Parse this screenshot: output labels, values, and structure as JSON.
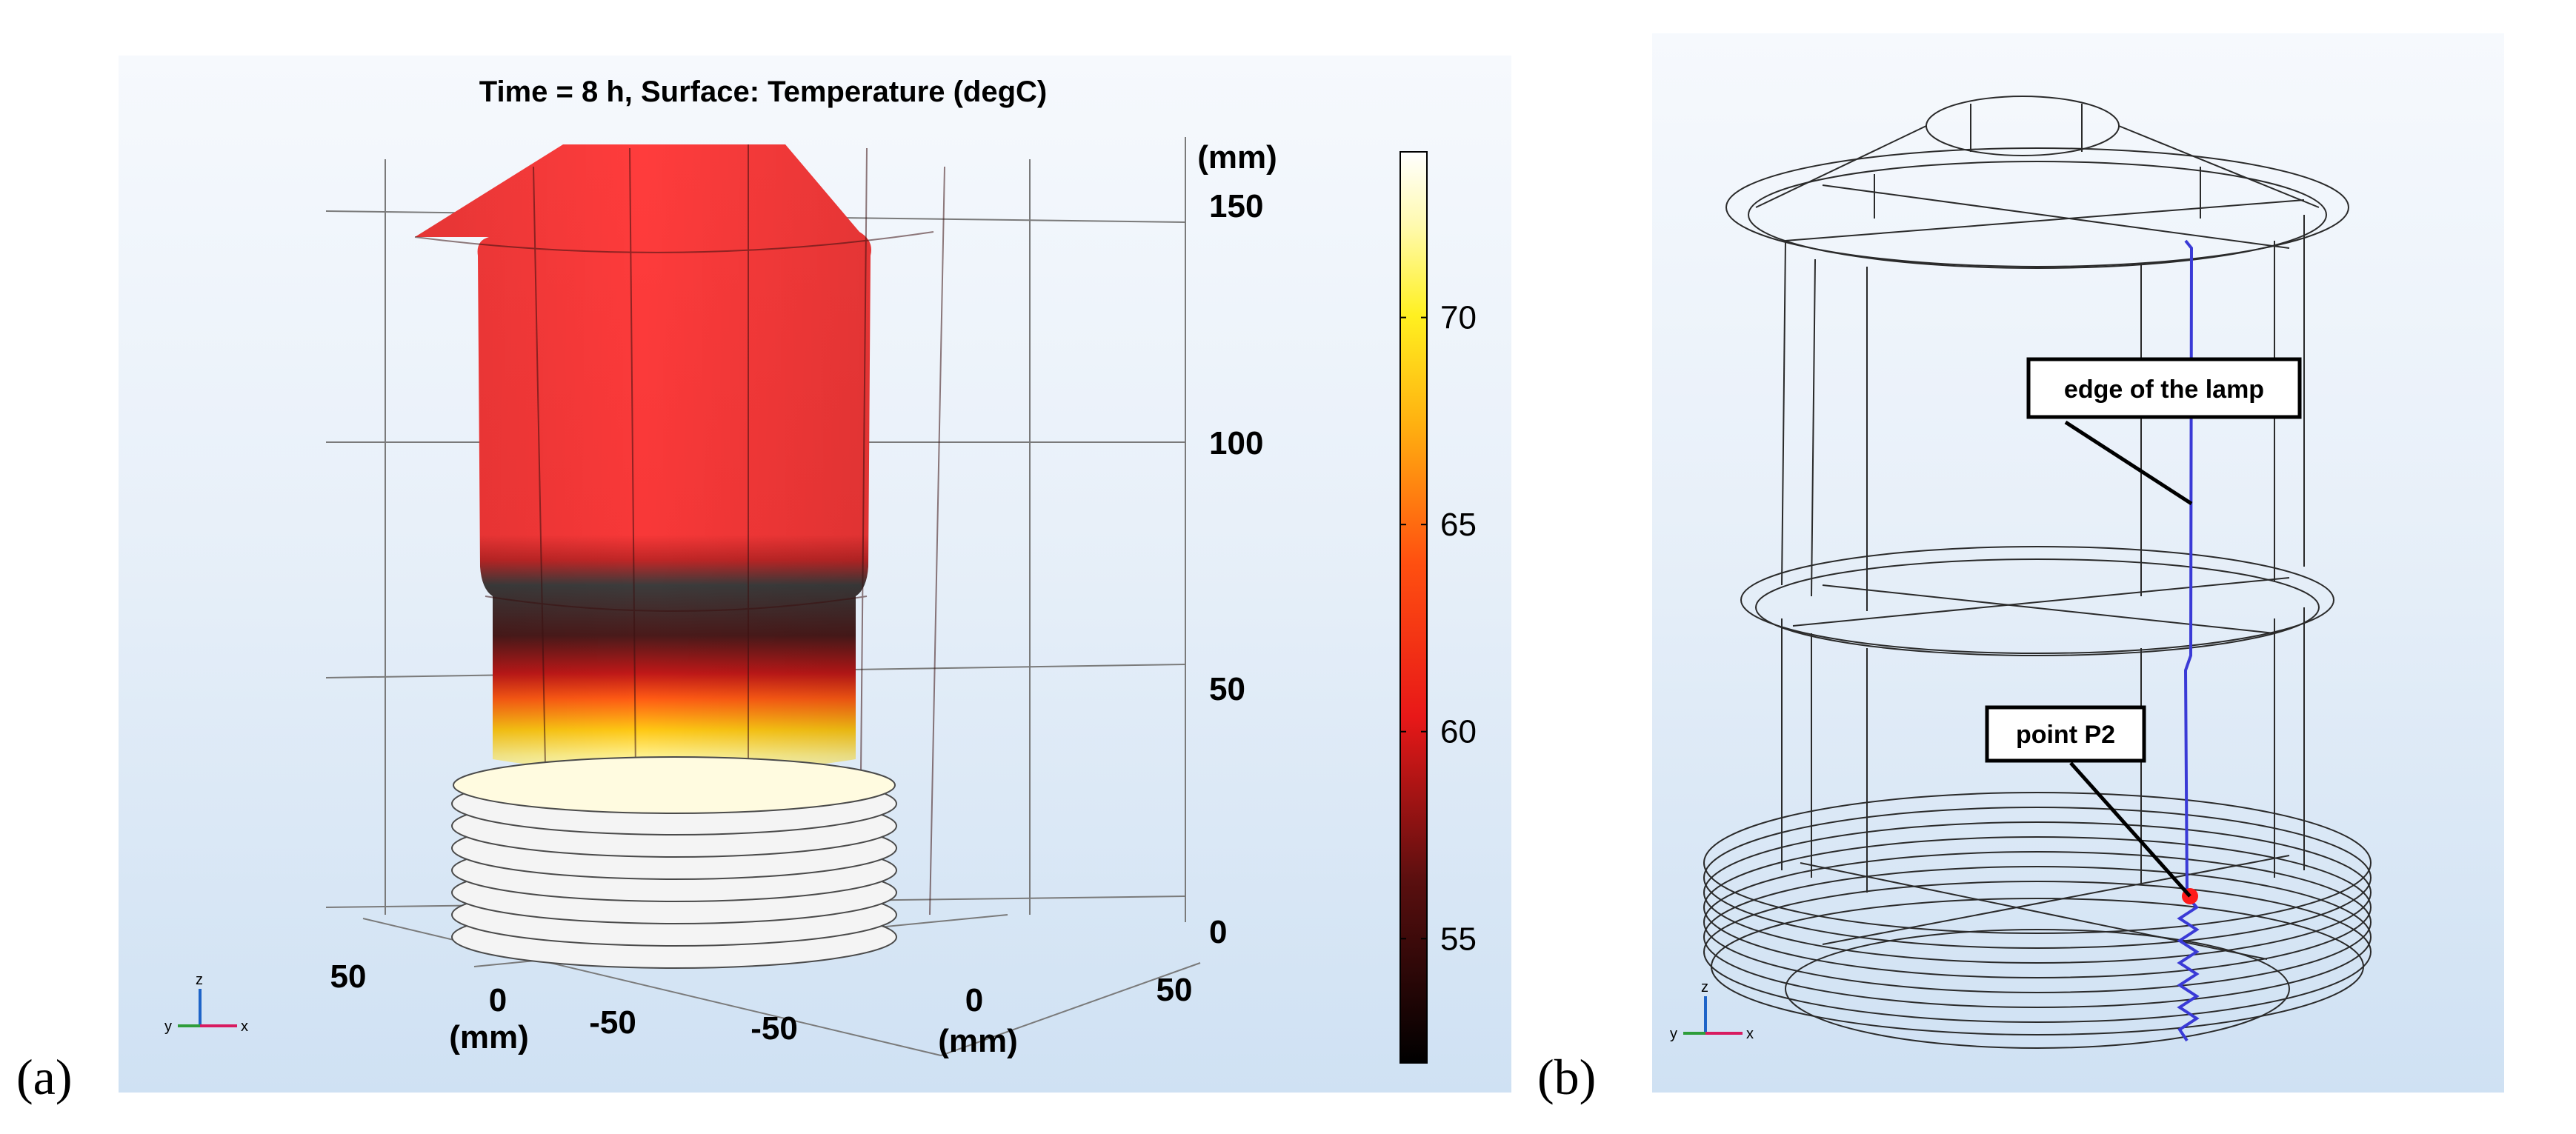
{
  "panel_a": {
    "label": "(a)",
    "title": "Time = 8 h, Surface: Temperature (degC)",
    "z_axis": {
      "unit": "(mm)",
      "ticks": [
        "150",
        "100",
        "50",
        "0"
      ]
    },
    "x_axis": {
      "ticks": [
        "50",
        "0",
        "-50"
      ],
      "unit": "(mm)"
    },
    "y_axis": {
      "ticks": [
        "-50",
        "0",
        "50"
      ],
      "unit": "(mm)"
    },
    "colorbar": {
      "ticks": [
        "70",
        "65",
        "60",
        "55"
      ],
      "range_degC": [
        52,
        74
      ]
    },
    "triad": {
      "z": "z",
      "y": "y",
      "x": "x"
    }
  },
  "panel_b": {
    "label": "(b)",
    "callouts": {
      "edge": "edge of the lamp",
      "point": "point P2"
    },
    "triad": {
      "z": "z",
      "y": "y",
      "x": "x"
    }
  },
  "colors": {
    "hot_red": "#ff3b3b",
    "edge_blue": "#3a3ad6",
    "point_red": "#ff1a1a",
    "triad_x": "#d81b60",
    "triad_y": "#2e9d3a",
    "triad_z": "#1e64c8"
  }
}
